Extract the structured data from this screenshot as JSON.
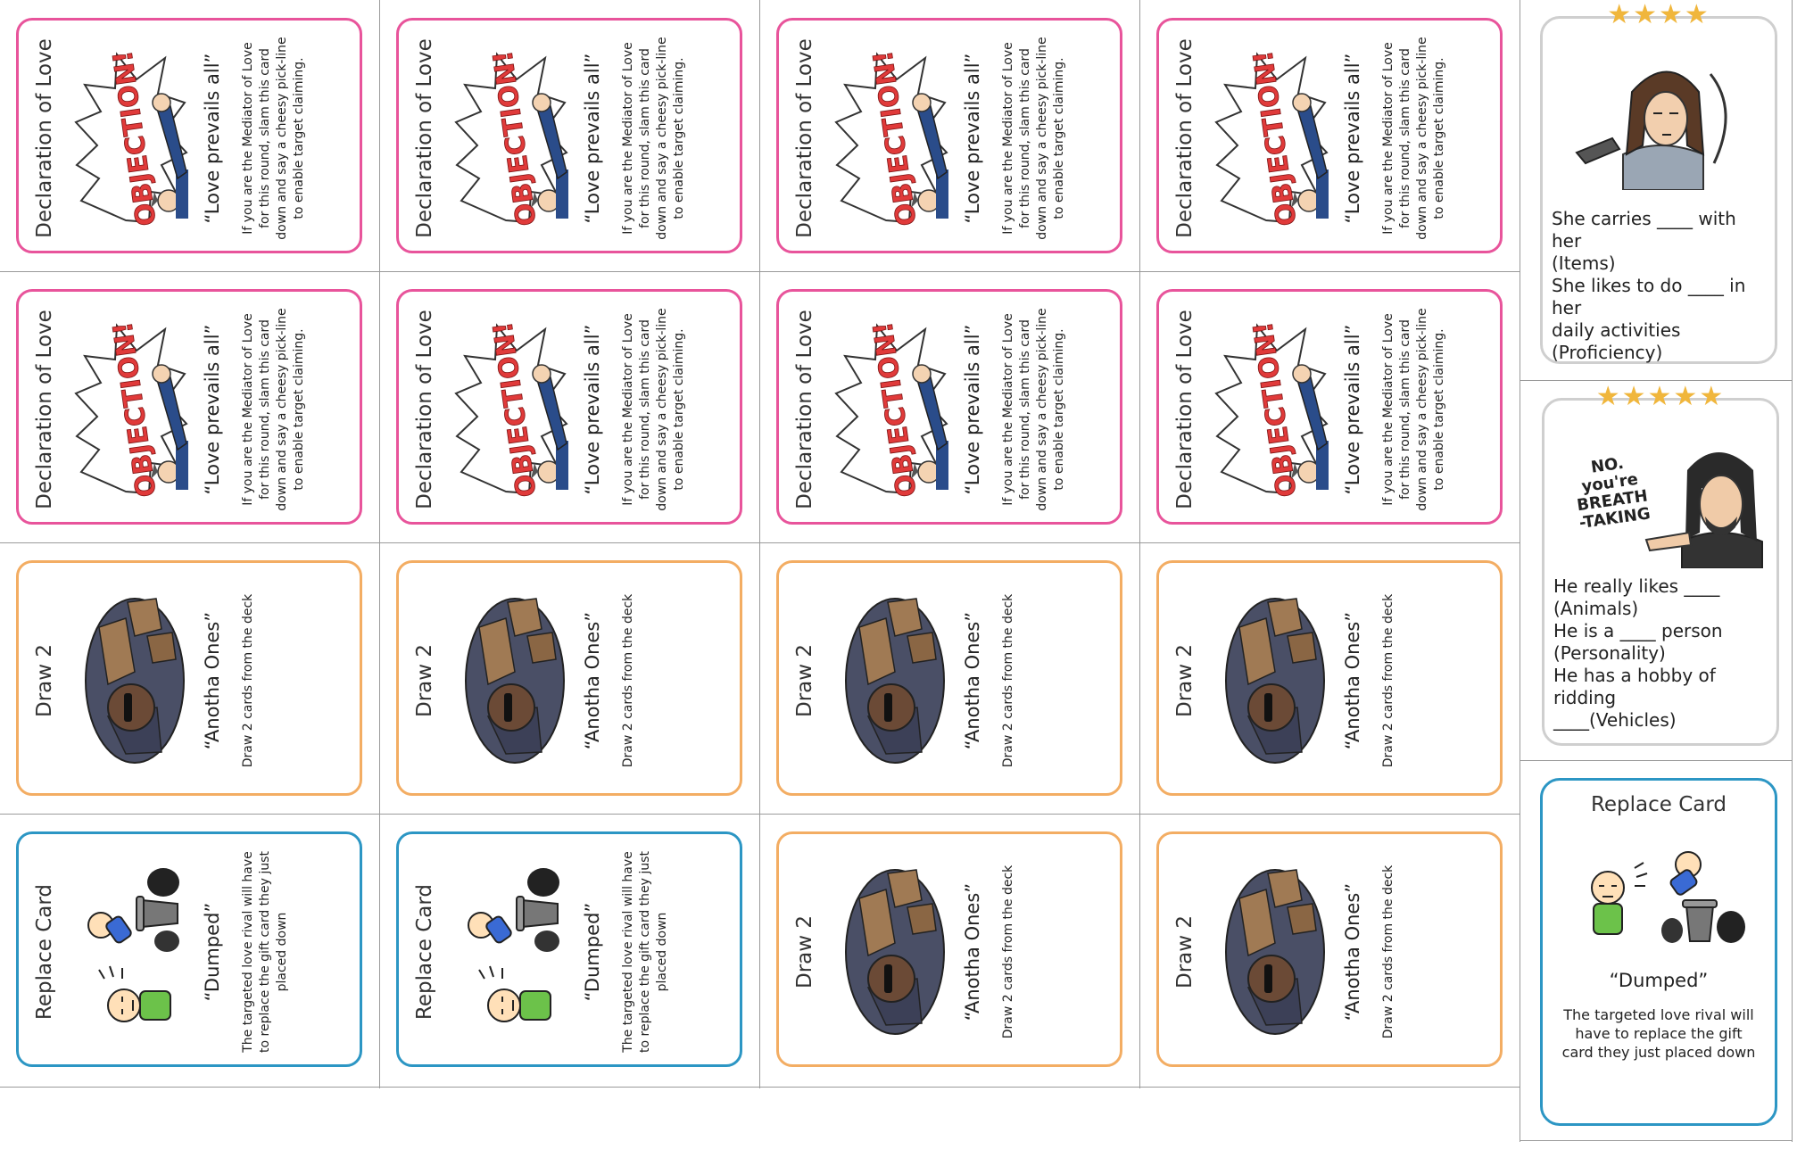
{
  "cards": [
    {
      "id": "r1c1",
      "color": "pink",
      "art": "objection",
      "title": "Declaration of Love",
      "quote": "“Love prevails all”",
      "desc": "If you are the Mediator of Love for this round, slam this card down and say a cheesy pick-line to enable target claiming.",
      "art_text": "OBJECTION!"
    },
    {
      "id": "r1c2",
      "color": "pink",
      "art": "objection",
      "title": "Declaration of Love",
      "quote": "“Love prevails all”",
      "desc": "If you are the Mediator of Love for this round, slam this card down and say a cheesy pick-line to enable target claiming.",
      "art_text": "OBJECTION!"
    },
    {
      "id": "r1c3",
      "color": "pink",
      "art": "objection",
      "title": "Declaration of Love",
      "quote": "“Love prevails all”",
      "desc": "If you are the Mediator of Love for this round, slam this card down and say a cheesy pick-line to enable target claiming.",
      "art_text": "OBJECTION!"
    },
    {
      "id": "r1c4",
      "color": "pink",
      "art": "objection",
      "title": "Declaration of Love",
      "quote": "“Love prevails all”",
      "desc": "If you are the Mediator of Love for this round, slam this card down and say a cheesy pick-line to enable target claiming.",
      "art_text": "OBJECTION!"
    },
    {
      "id": "r2c1",
      "color": "pink",
      "art": "objection",
      "title": "Declaration of Love",
      "quote": "“Love prevails all”",
      "desc": "If you are the Mediator of Love for this round, slam this card down and say a cheesy pick-line to enable target claiming.",
      "art_text": "OBJECTION!"
    },
    {
      "id": "r2c2",
      "color": "pink",
      "art": "objection",
      "title": "Declaration of Love",
      "quote": "“Love prevails all”",
      "desc": "If you are the Mediator of Love for this round, slam this card down and say a cheesy pick-line to enable target claiming.",
      "art_text": "OBJECTION!"
    },
    {
      "id": "r2c3",
      "color": "pink",
      "art": "objection",
      "title": "Declaration of Love",
      "quote": "“Love prevails all”",
      "desc": "If you are the Mediator of Love for this round, slam this card down and say a cheesy pick-line to enable target claiming.",
      "art_text": "OBJECTION!"
    },
    {
      "id": "r2c4",
      "color": "pink",
      "art": "objection",
      "title": "Declaration of Love",
      "quote": "“Love prevails all”",
      "desc": "If you are the Mediator of Love for this round, slam this card down and say a cheesy pick-line to enable target claiming.",
      "art_text": "OBJECTION!"
    },
    {
      "id": "r3c1",
      "color": "orange",
      "art": "anotha",
      "title": "Draw 2",
      "quote": "“Anotha Ones”",
      "desc": "Draw 2 cards from the deck",
      "art_text": ""
    },
    {
      "id": "r3c2",
      "color": "orange",
      "art": "anotha",
      "title": "Draw 2",
      "quote": "“Anotha Ones”",
      "desc": "Draw 2 cards from the deck",
      "art_text": ""
    },
    {
      "id": "r3c3",
      "color": "orange",
      "art": "anotha",
      "title": "Draw 2",
      "quote": "“Anotha Ones”",
      "desc": "Draw 2 cards from the deck",
      "art_text": ""
    },
    {
      "id": "r3c4",
      "color": "orange",
      "art": "anotha",
      "title": "Draw 2",
      "quote": "“Anotha Ones”",
      "desc": "Draw 2 cards from the deck",
      "art_text": ""
    },
    {
      "id": "r4c1",
      "color": "blue",
      "art": "dumped",
      "title": "Replace Card",
      "quote": "“Dumped”",
      "desc": "The targeted love rival will have to replace the gift card they just placed down",
      "art_text": ""
    },
    {
      "id": "r4c2",
      "color": "blue",
      "art": "dumped",
      "title": "Replace Card",
      "quote": "“Dumped”",
      "desc": "The targeted love rival will have to replace the gift card they just placed down",
      "art_text": ""
    },
    {
      "id": "r4c3",
      "color": "orange",
      "art": "anotha",
      "title": "Draw 2",
      "quote": "“Anotha Ones”",
      "desc": "Draw 2 cards from the deck",
      "art_text": ""
    },
    {
      "id": "r4c4",
      "color": "orange",
      "art": "anotha",
      "title": "Draw 2",
      "quote": "“Anotha Ones”",
      "desc": "Draw 2 cards from the deck",
      "art_text": ""
    }
  ],
  "character_cards": [
    {
      "id": "lara",
      "stars": "★★★★",
      "rating": 4,
      "lines": [
        "She carries ____ with her",
        "(Items)",
        "She likes to do ____ in her",
        "daily activities",
        "(Proficiency)"
      ]
    },
    {
      "id": "keanu",
      "stars": "★★★★★",
      "rating": 5,
      "art_text": "NO. you're BREATH-TAKING",
      "lines": [
        "He really likes ____",
        "(Animals)",
        "He is a ____ person",
        "(Personality)",
        "He has a hobby of ridding",
        "____(Vehicles)"
      ]
    }
  ],
  "replace_card": {
    "title": "Replace Card",
    "quote": "“Dumped”",
    "desc": "The targeted love rival will have to replace the gift card they just placed down"
  },
  "colors": {
    "pink": "#e8549b",
    "orange": "#f3ad63",
    "blue": "#2c96c4",
    "star": "#f0b63c",
    "objection_red": "#e03a3a",
    "suit_blue": "#2a4c8a",
    "shirt_green": "#6cc24a"
  }
}
